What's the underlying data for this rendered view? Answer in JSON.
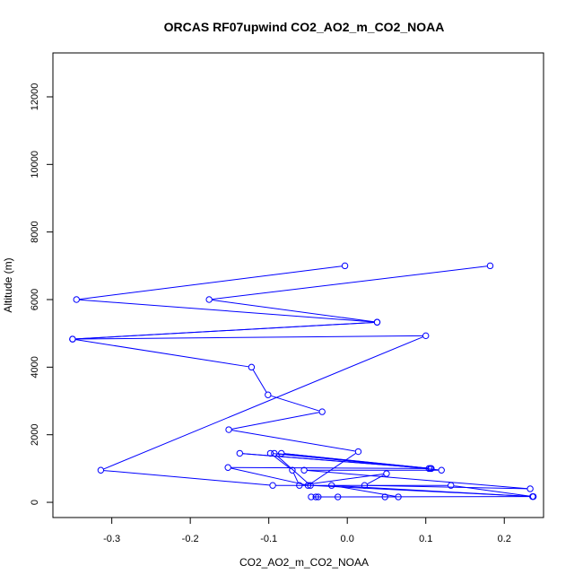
{
  "chart_data": {
    "type": "line",
    "title": "ORCAS RF07upwind CO2_AO2_m_CO2_NOAA",
    "xlabel": "CO2_AO2_m_CO2_NOAA",
    "ylabel": "Altitude (m)",
    "xlim": [
      -0.375,
      0.25
    ],
    "ylim": [
      -450,
      13300
    ],
    "x_ticks": [
      -0.3,
      -0.2,
      -0.1,
      0.0,
      0.1,
      0.2
    ],
    "x_tick_labels": [
      "-0.3",
      "-0.2",
      "-0.1",
      "0.0",
      "0.1",
      "0.2"
    ],
    "y_ticks": [
      0,
      2000,
      4000,
      6000,
      8000,
      10000,
      12000
    ],
    "y_tick_labels": [
      "0",
      "2000",
      "4000",
      "6000",
      "8000",
      "10000",
      "12000"
    ],
    "grid": false,
    "line_color": "#0000ff",
    "marker": "open-circle",
    "series": [
      {
        "points": [
          [
            -0.003,
            7000
          ],
          [
            -0.345,
            6000
          ],
          [
            0.038,
            5330
          ],
          [
            -0.35,
            4830
          ],
          [
            0.1,
            4930
          ],
          [
            -0.314,
            950
          ],
          [
            -0.095,
            500
          ],
          [
            0.132,
            500
          ],
          [
            0.236,
            170
          ],
          [
            -0.02,
            500
          ],
          [
            0.065,
            160
          ],
          [
            -0.046,
            160
          ],
          [
            0.048,
            160
          ],
          [
            -0.037,
            160
          ],
          [
            -0.012,
            160
          ],
          [
            -0.04,
            160
          ],
          [
            0.237,
            170
          ],
          [
            -0.047,
            500
          ],
          [
            -0.093,
            1450
          ],
          [
            0.12,
            950
          ],
          [
            -0.055,
            950
          ],
          [
            0.233,
            400
          ],
          [
            0.022,
            500
          ],
          [
            0.05,
            850
          ],
          [
            -0.061,
            500
          ],
          [
            -0.07,
            950
          ],
          [
            -0.098,
            1450
          ],
          [
            0.107,
            1000
          ],
          [
            -0.137,
            1450
          ],
          [
            0.106,
            1000
          ],
          [
            -0.084,
            1450
          ],
          [
            0.104,
            1000
          ],
          [
            -0.152,
            1030
          ],
          [
            -0.05,
            500
          ],
          [
            0.014,
            1500
          ],
          [
            -0.151,
            2150
          ],
          [
            -0.032,
            2680
          ],
          [
            -0.101,
            3180
          ],
          [
            -0.122,
            4000
          ],
          [
            -0.35,
            4830
          ],
          [
            0.038,
            5330
          ],
          [
            -0.176,
            6000
          ],
          [
            0.182,
            7000
          ]
        ]
      }
    ]
  }
}
